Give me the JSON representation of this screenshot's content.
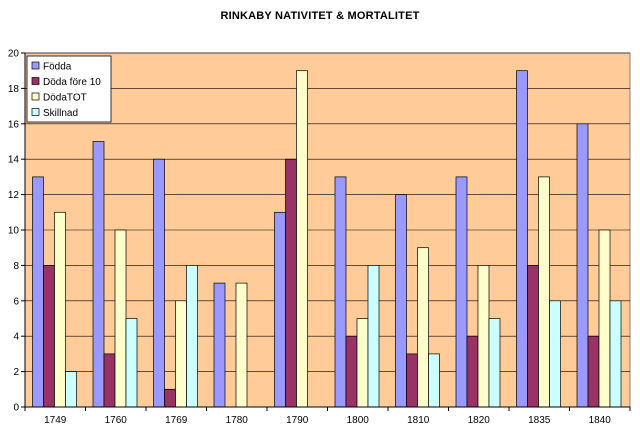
{
  "chart_data": {
    "type": "bar",
    "title": "RINKABY  NATIVITET & MORTALITET",
    "xlabel": "",
    "ylabel": "",
    "categories": [
      "1749",
      "1760",
      "1769",
      "1780",
      "1790",
      "1800",
      "1810",
      "1820",
      "1835",
      "1840"
    ],
    "series": [
      {
        "name": "Födda",
        "values": [
          13,
          15,
          14,
          7,
          11,
          13,
          12,
          13,
          19,
          16
        ],
        "color": "#9999ff"
      },
      {
        "name": "Döda före 10",
        "values": [
          8,
          3,
          1,
          0,
          14,
          4,
          3,
          4,
          8,
          4
        ],
        "color": "#993366"
      },
      {
        "name": "DödaTOT",
        "values": [
          11,
          10,
          6,
          7,
          19,
          5,
          9,
          8,
          13,
          10
        ],
        "color": "#ffffcc"
      },
      {
        "name": "Skillnad",
        "values": [
          2,
          5,
          8,
          0,
          0,
          8,
          3,
          5,
          6,
          6
        ],
        "color": "#ccffff"
      }
    ],
    "ylim": [
      0,
      20
    ],
    "yticks": [
      0,
      2,
      4,
      6,
      8,
      10,
      12,
      14,
      16,
      18,
      20
    ],
    "grid": true,
    "legend": "top-left",
    "plot_background": "#ffcc99"
  }
}
